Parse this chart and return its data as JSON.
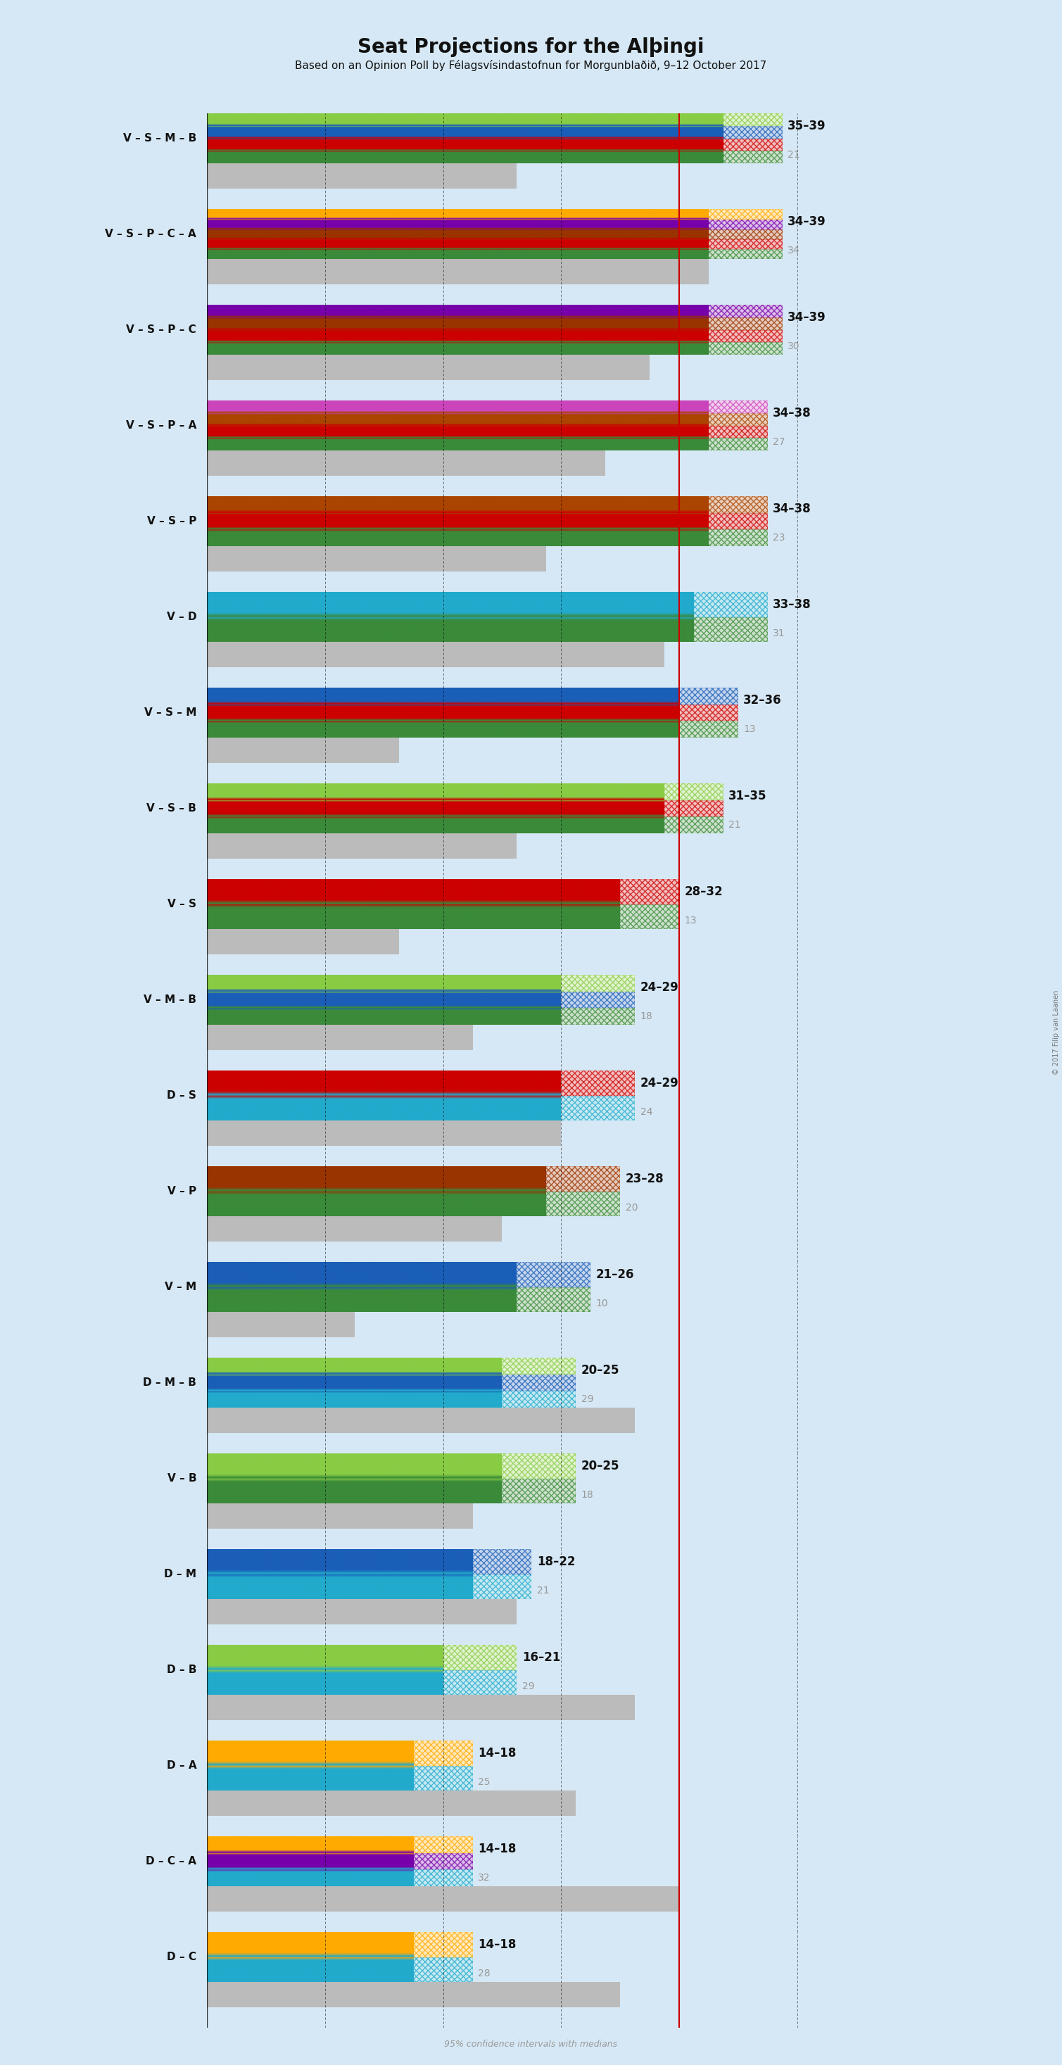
{
  "title": "Seat Projections for the Alþingi",
  "subtitle": "Based on an Opinion Poll by Félagsvísindastofnun for Morgunblaðið, 9–12 October 2017",
  "footer": "95% confidence intervals with medians",
  "bg_color": "#d6e8f5",
  "coalitions": [
    {
      "label": "V – S – M – B",
      "range": "35–39",
      "median": 21,
      "ci_low": 35,
      "ci_high": 39,
      "parties": [
        "V",
        "S",
        "M",
        "B"
      ],
      "colors": [
        "#3a8a3a",
        "#cc0000",
        "#1a5eb8",
        "#88cc44"
      ]
    },
    {
      "label": "V – S – P – C – A",
      "range": "34–39",
      "median": 34,
      "ci_low": 34,
      "ci_high": 39,
      "parties": [
        "V",
        "S",
        "P",
        "C",
        "A"
      ],
      "colors": [
        "#3a8a3a",
        "#cc0000",
        "#993300",
        "#7700aa",
        "#ffaa00"
      ]
    },
    {
      "label": "V – S – P – C",
      "range": "34–39",
      "median": 30,
      "ci_low": 34,
      "ci_high": 39,
      "parties": [
        "V",
        "S",
        "P",
        "C"
      ],
      "colors": [
        "#3a8a3a",
        "#cc0000",
        "#993300",
        "#7700aa"
      ]
    },
    {
      "label": "V – S – P – A",
      "range": "34–38",
      "median": 27,
      "ci_low": 34,
      "ci_high": 38,
      "parties": [
        "V",
        "S",
        "P",
        "A"
      ],
      "colors": [
        "#3a8a3a",
        "#cc0000",
        "#aa4400",
        "#cc44bb"
      ]
    },
    {
      "label": "V – S – P",
      "range": "34–38",
      "median": 23,
      "ci_low": 34,
      "ci_high": 38,
      "parties": [
        "V",
        "S",
        "P"
      ],
      "colors": [
        "#3a8a3a",
        "#cc0000",
        "#aa4400"
      ]
    },
    {
      "label": "V – D",
      "range": "33–38",
      "median": 31,
      "ci_low": 33,
      "ci_high": 38,
      "parties": [
        "V",
        "D"
      ],
      "colors": [
        "#3a8a3a",
        "#22aacc"
      ]
    },
    {
      "label": "V – S – M",
      "range": "32–36",
      "median": 13,
      "ci_low": 32,
      "ci_high": 36,
      "parties": [
        "V",
        "S",
        "M"
      ],
      "colors": [
        "#3a8a3a",
        "#cc0000",
        "#1a5eb8"
      ]
    },
    {
      "label": "V – S – B",
      "range": "31–35",
      "median": 21,
      "ci_low": 31,
      "ci_high": 35,
      "parties": [
        "V",
        "S",
        "B"
      ],
      "colors": [
        "#3a8a3a",
        "#cc0000",
        "#88cc44"
      ]
    },
    {
      "label": "V – S",
      "range": "28–32",
      "median": 13,
      "ci_low": 28,
      "ci_high": 32,
      "parties": [
        "V",
        "S"
      ],
      "colors": [
        "#3a8a3a",
        "#cc0000"
      ]
    },
    {
      "label": "V – M – B",
      "range": "24–29",
      "median": 18,
      "ci_low": 24,
      "ci_high": 29,
      "parties": [
        "V",
        "M",
        "B"
      ],
      "colors": [
        "#3a8a3a",
        "#1a5eb8",
        "#88cc44"
      ]
    },
    {
      "label": "D – S",
      "range": "24–29",
      "median": 24,
      "ci_low": 24,
      "ci_high": 29,
      "parties": [
        "D",
        "S"
      ],
      "colors": [
        "#22aacc",
        "#cc0000"
      ]
    },
    {
      "label": "V – P",
      "range": "23–28",
      "median": 20,
      "ci_low": 23,
      "ci_high": 28,
      "parties": [
        "V",
        "P"
      ],
      "colors": [
        "#3a8a3a",
        "#993300"
      ]
    },
    {
      "label": "V – M",
      "range": "21–26",
      "median": 10,
      "ci_low": 21,
      "ci_high": 26,
      "parties": [
        "V",
        "M"
      ],
      "colors": [
        "#3a8a3a",
        "#1a5eb8"
      ]
    },
    {
      "label": "D – M – B",
      "range": "20–25",
      "median": 29,
      "ci_low": 20,
      "ci_high": 25,
      "parties": [
        "D",
        "M",
        "B"
      ],
      "colors": [
        "#22aacc",
        "#1a5eb8",
        "#88cc44"
      ]
    },
    {
      "label": "V – B",
      "range": "20–25",
      "median": 18,
      "ci_low": 20,
      "ci_high": 25,
      "parties": [
        "V",
        "B"
      ],
      "colors": [
        "#3a8a3a",
        "#88cc44"
      ]
    },
    {
      "label": "D – M",
      "range": "18–22",
      "median": 21,
      "ci_low": 18,
      "ci_high": 22,
      "parties": [
        "D",
        "M"
      ],
      "colors": [
        "#22aacc",
        "#1a5eb8"
      ]
    },
    {
      "label": "D – B",
      "range": "16–21",
      "median": 29,
      "ci_low": 16,
      "ci_high": 21,
      "parties": [
        "D",
        "B"
      ],
      "colors": [
        "#22aacc",
        "#88cc44"
      ]
    },
    {
      "label": "D – A",
      "range": "14–18",
      "median": 25,
      "ci_low": 14,
      "ci_high": 18,
      "parties": [
        "D",
        "A"
      ],
      "colors": [
        "#22aacc",
        "#ffaa00"
      ]
    },
    {
      "label": "D – C – A",
      "range": "14–18",
      "median": 32,
      "ci_low": 14,
      "ci_high": 18,
      "parties": [
        "D",
        "C",
        "A"
      ],
      "colors": [
        "#22aacc",
        "#7700aa",
        "#ffaa00"
      ]
    },
    {
      "label": "D – C",
      "range": "14–18",
      "median": 28,
      "ci_low": 14,
      "ci_high": 18,
      "parties": [
        "D",
        "C"
      ],
      "colors": [
        "#22aacc",
        "#ffaa00"
      ]
    }
  ],
  "xmax": 45,
  "majority_line": 32,
  "tick_positions": [
    0,
    8,
    16,
    24,
    32,
    40
  ],
  "copyright": "© 2017 Filip van Laanen"
}
